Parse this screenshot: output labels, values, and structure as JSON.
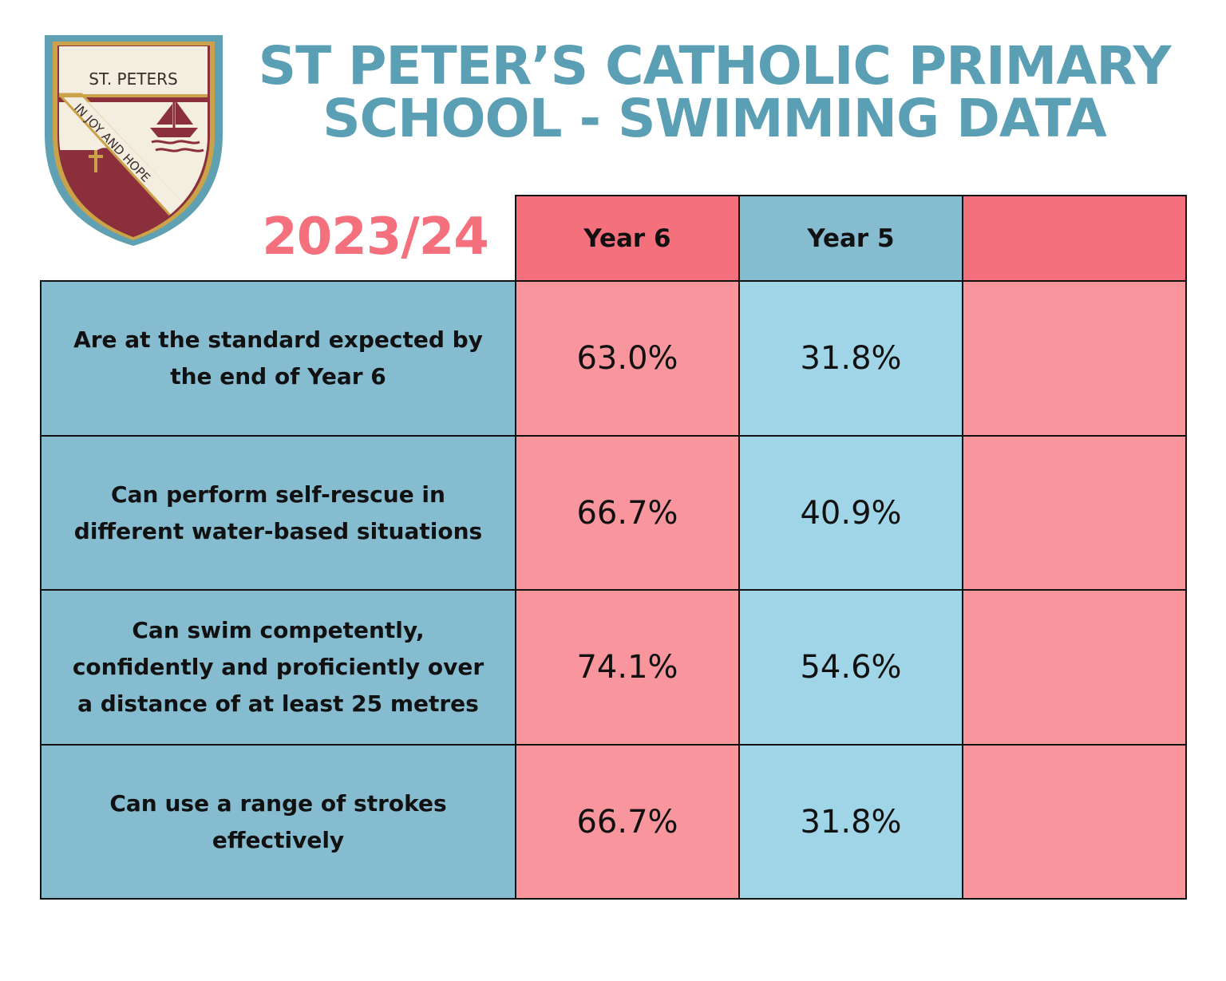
{
  "logo": {
    "name": "ST. PETERS",
    "motto": "IN JOY AND HOPE"
  },
  "title": {
    "line1": "ST PETER’S CATHOLIC PRIMARY",
    "line2": "SCHOOL - SWIMMING DATA"
  },
  "year": "2023/24",
  "colors": {
    "title": "#5a9fb4",
    "year": "#f4707c",
    "header_pink": "#f4707c",
    "header_blue": "#86bccf",
    "cell_pink": "#f8959d",
    "cell_blue": "#9fd5e6",
    "label_bg": "#86bccf"
  },
  "table": {
    "headers": [
      "Year 6",
      "Year 5",
      ""
    ],
    "rows": [
      {
        "label": "Are at the standard expected by the end of Year 6",
        "values": [
          "63.0%",
          "31.8%",
          ""
        ]
      },
      {
        "label": "Can perform self-rescue in different water-based situations",
        "values": [
          "66.7%",
          "40.9%",
          ""
        ]
      },
      {
        "label": "Can swim competently, confidently and proficiently over a distance of at least 25 metres",
        "values": [
          "74.1%",
          "54.6%",
          ""
        ]
      },
      {
        "label": "Can use a range of strokes effectively",
        "values": [
          "66.7%",
          "31.8%",
          ""
        ]
      }
    ]
  }
}
